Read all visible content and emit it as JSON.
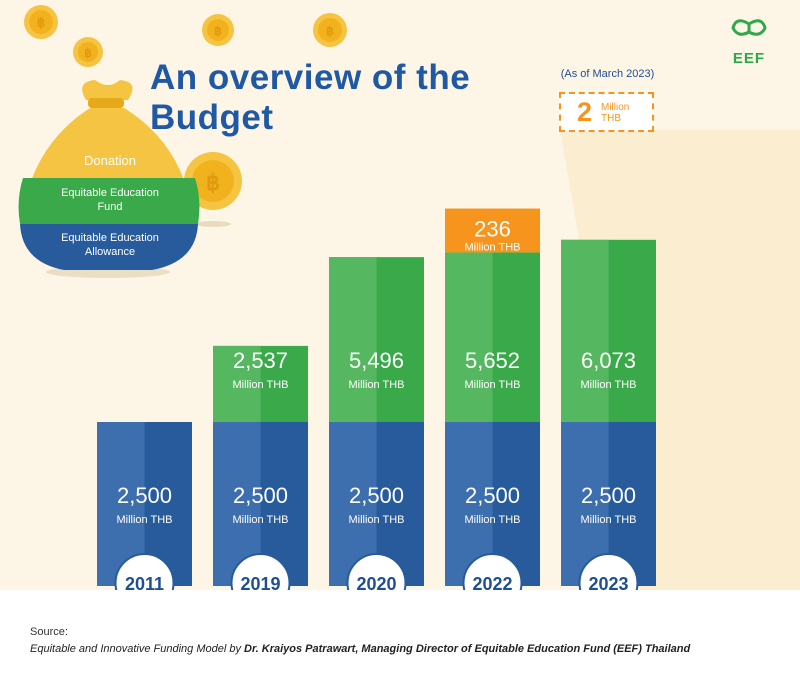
{
  "title": "An overview of the Budget",
  "as_of": "(As of March 2023)",
  "logo_text": "EEF",
  "bag_labels": {
    "donation": "Donation",
    "fund": "Equitable Education Fund",
    "allowance": "Equitable Education Allowance"
  },
  "extra_2023": {
    "value": "2",
    "unit_line1": "Million",
    "unit_line2": "THB"
  },
  "source_label": "Source:",
  "source_text_part1": "Equitable and Innovative Funding Model by ",
  "source_text_part2": "Dr. Kraiyos Patrawart, Managing Director of Equitable Education Fund (EEF) Thailand",
  "colors": {
    "allowance": "#275b9c",
    "allowance_light": "#3d6fae",
    "fund": "#3aa94a",
    "fund_light": "#55b861",
    "donation": "#f7941d",
    "background": "#fdf6e6",
    "year_circle_fill": "#ffffff",
    "year_text": "#1f4e91"
  },
  "chart_data": {
    "type": "bar",
    "stacked": true,
    "title": "An overview of the Budget",
    "unit_label": "Million THB",
    "categories": [
      "2011",
      "2019",
      "2020",
      "2022",
      "2023"
    ],
    "series": [
      {
        "name": "Equitable Education Allowance",
        "values": [
          2500,
          2500,
          2500,
          2500,
          2500
        ],
        "labels": [
          "2,500",
          "2,500",
          "2,500",
          "2,500",
          "2,500"
        ]
      },
      {
        "name": "Equitable Education Fund",
        "values": [
          0,
          2537,
          5496,
          5652,
          6073
        ],
        "labels": [
          "",
          "2,537",
          "5,496",
          "5,652",
          "6,073"
        ]
      },
      {
        "name": "Donation",
        "values": [
          0,
          0,
          0,
          236,
          2
        ],
        "labels": [
          "",
          "",
          "",
          "236",
          "2"
        ]
      }
    ],
    "annotation": "(As of March 2023)"
  }
}
